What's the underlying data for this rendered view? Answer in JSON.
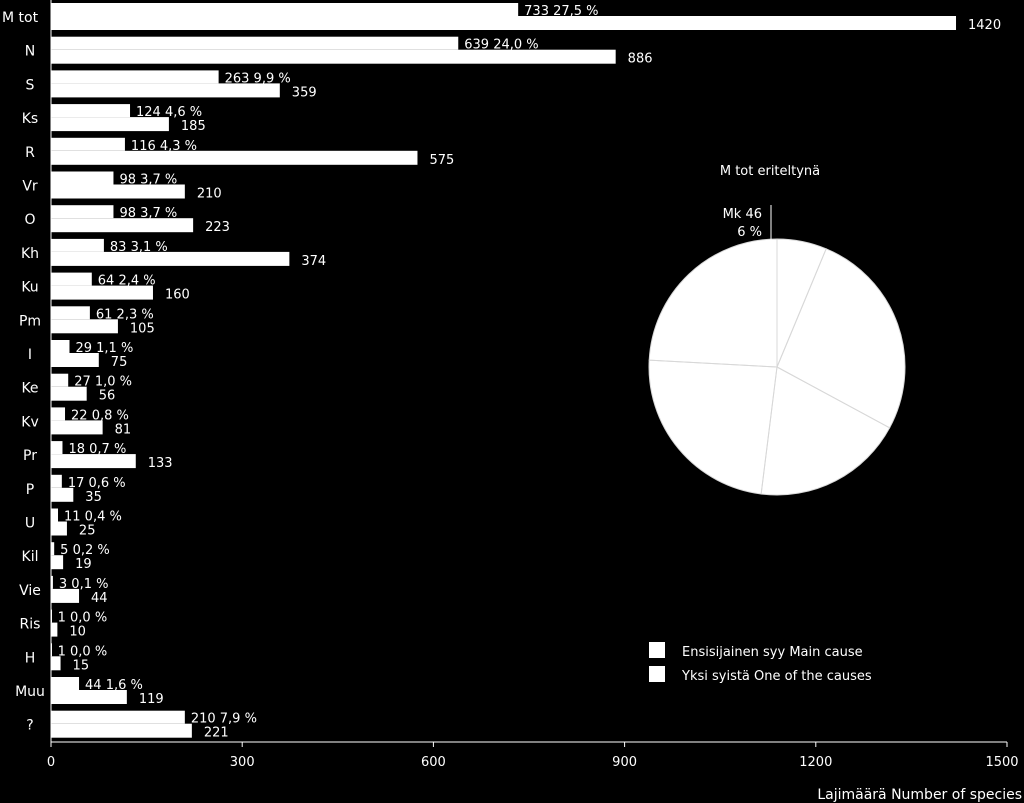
{
  "chart_data": [
    {
      "type": "bar",
      "orientation": "horizontal",
      "categories": [
        "M tot",
        "N",
        "S",
        "Ks",
        "R",
        "Vr",
        "O",
        "Kh",
        "Ku",
        "Pm",
        "I",
        "Ke",
        "Kv",
        "Pr",
        "P",
        "U",
        "Kil",
        "Vie",
        "Ris",
        "H",
        "Muu",
        "?"
      ],
      "series": [
        {
          "name": "Ensisijainen syy Main cause",
          "values": [
            733,
            639,
            263,
            124,
            116,
            98,
            98,
            83,
            64,
            61,
            29,
            27,
            22,
            18,
            17,
            11,
            5,
            3,
            1,
            1,
            44,
            210
          ],
          "labels": [
            "27,5 %",
            "24,0 %",
            "9,9 %",
            "4,6 %",
            "4,3 %",
            "3,7 %",
            "3,7 %",
            "3,1 %",
            "2,4 %",
            "2,3 %",
            "1,1 %",
            "1,0 %",
            "0,8 %",
            "0,7 %",
            "0,6 %",
            "0,4 %",
            "0,2 %",
            "0,1 %",
            "0,0 %",
            "0,0 %",
            "1,6 %",
            "7,9 %"
          ]
        },
        {
          "name": "Yksi syistä One of the causes",
          "values": [
            1420,
            886,
            359,
            185,
            575,
            210,
            223,
            374,
            160,
            105,
            75,
            56,
            81,
            133,
            35,
            25,
            19,
            44,
            10,
            15,
            119,
            221
          ]
        }
      ],
      "xlabel": "Lajimäärä Number of species",
      "xlim": [
        0,
        1500
      ],
      "xticks": [
        "0",
        "300",
        "600",
        "900",
        "1200",
        "1500"
      ],
      "legend_position": "bottom-right"
    },
    {
      "type": "pie",
      "title": "M tot eriteltynä",
      "slices": [
        {
          "label": "Mk 46",
          "percent_label": "6 %",
          "value": 46
        },
        {
          "label": "",
          "value": 195
        },
        {
          "label": "",
          "value": 140
        },
        {
          "label": "",
          "value": 175
        },
        {
          "label": "",
          "value": 177
        }
      ]
    }
  ],
  "colors": {
    "background": "#000000",
    "bar": "#ffffff",
    "text": "#ffffff"
  }
}
